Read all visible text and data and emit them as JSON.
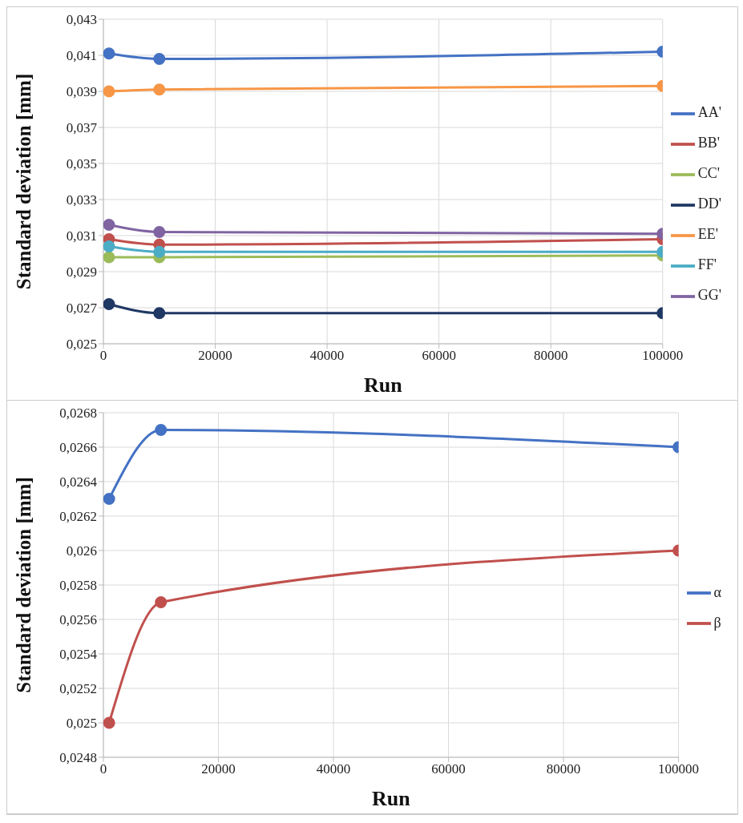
{
  "chart_data": [
    {
      "type": "line",
      "xlabel": "Run",
      "ylabel": "Standard deviation [mm]",
      "x": [
        1000,
        10000,
        100000
      ],
      "series": [
        {
          "name": "AA'",
          "color": "#4472c4",
          "values": [
            0.0411,
            0.0408,
            0.0412
          ]
        },
        {
          "name": "BB'",
          "color": "#c0504d",
          "values": [
            0.0308,
            0.0305,
            0.0308
          ]
        },
        {
          "name": "CC'",
          "color": "#9bbb59",
          "values": [
            0.0298,
            0.0298,
            0.0299
          ]
        },
        {
          "name": "DD'",
          "color": "#1f3864",
          "values": [
            0.0272,
            0.0267,
            0.0267
          ]
        },
        {
          "name": "EE'",
          "color": "#f79646",
          "values": [
            0.039,
            0.0391,
            0.0393
          ]
        },
        {
          "name": "FF'",
          "color": "#4bacc6",
          "values": [
            0.0304,
            0.0301,
            0.0301
          ]
        },
        {
          "name": "GG'",
          "color": "#8064a2",
          "values": [
            0.0316,
            0.0312,
            0.0311
          ]
        }
      ],
      "xlim": [
        0,
        100000
      ],
      "xticks": [
        0,
        20000,
        40000,
        60000,
        80000,
        100000
      ],
      "ylim": [
        0.025,
        0.043
      ],
      "yticks": [
        {
          "value": 0.025,
          "label": "0,025"
        },
        {
          "value": 0.027,
          "label": "0,027"
        },
        {
          "value": 0.029,
          "label": "0,029"
        },
        {
          "value": 0.031,
          "label": "0,031"
        },
        {
          "value": 0.033,
          "label": "0,033"
        },
        {
          "value": 0.035,
          "label": "0,035"
        },
        {
          "value": 0.037,
          "label": "0,037"
        },
        {
          "value": 0.039,
          "label": "0,039"
        },
        {
          "value": 0.041,
          "label": "0,041"
        },
        {
          "value": 0.043,
          "label": "0,043"
        }
      ],
      "grid": true,
      "legend": "right",
      "marker": "circle"
    },
    {
      "type": "line",
      "xlabel": "Run",
      "ylabel": "Standard deviation [mm]",
      "x": [
        1000,
        10000,
        100000
      ],
      "series": [
        {
          "name": "α",
          "color": "#4472c4",
          "values": [
            0.0263,
            0.0267,
            0.0266
          ]
        },
        {
          "name": "β",
          "color": "#c0504d",
          "values": [
            0.025,
            0.0257,
            0.026
          ]
        }
      ],
      "xlim": [
        0,
        100000
      ],
      "xticks": [
        0,
        20000,
        40000,
        60000,
        80000,
        100000
      ],
      "ylim": [
        0.0248,
        0.0268
      ],
      "yticks": [
        {
          "value": 0.0248,
          "label": "0,0248"
        },
        {
          "value": 0.025,
          "label": "0,025"
        },
        {
          "value": 0.0252,
          "label": "0,0252"
        },
        {
          "value": 0.0254,
          "label": "0,0254"
        },
        {
          "value": 0.0256,
          "label": "0,0256"
        },
        {
          "value": 0.0258,
          "label": "0,0258"
        },
        {
          "value": 0.026,
          "label": "0,026"
        },
        {
          "value": 0.0262,
          "label": "0,0262"
        },
        {
          "value": 0.0264,
          "label": "0,0264"
        },
        {
          "value": 0.0266,
          "label": "0,0266"
        },
        {
          "value": 0.0268,
          "label": "0,0268"
        }
      ],
      "grid": true,
      "legend": "right",
      "marker": "circle"
    }
  ]
}
